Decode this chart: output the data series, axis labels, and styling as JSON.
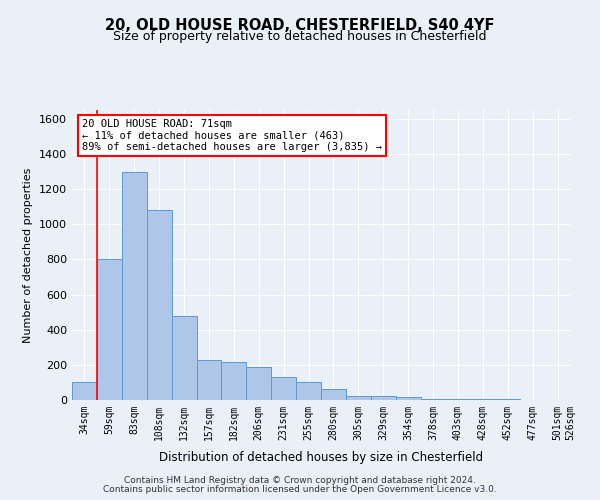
{
  "title1": "20, OLD HOUSE ROAD, CHESTERFIELD, S40 4YF",
  "title2": "Size of property relative to detached houses in Chesterfield",
  "xlabel": "Distribution of detached houses by size in Chesterfield",
  "ylabel": "Number of detached properties",
  "footer1": "Contains HM Land Registry data © Crown copyright and database right 2024.",
  "footer2": "Contains public sector information licensed under the Open Government Licence v3.0.",
  "annotation_line1": "20 OLD HOUSE ROAD: 71sqm",
  "annotation_line2": "← 11% of detached houses are smaller (463)",
  "annotation_line3": "89% of semi-detached houses are larger (3,835) →",
  "bar_values": [
    100,
    800,
    1300,
    1080,
    480,
    225,
    215,
    190,
    130,
    105,
    60,
    25,
    20,
    18,
    5,
    5,
    3,
    3,
    2,
    2
  ],
  "categories": [
    "34sqm",
    "59sqm",
    "83sqm",
    "108sqm",
    "132sqm",
    "157sqm",
    "182sqm",
    "206sqm",
    "231sqm",
    "255sqm",
    "280sqm",
    "305sqm",
    "329sqm",
    "354sqm",
    "378sqm",
    "403sqm",
    "428sqm",
    "452sqm",
    "477sqm",
    "501sqm"
  ],
  "xtick_extra": "526sqm",
  "bar_color": "#aec6e8",
  "bar_edge_color": "#5b9bd5",
  "background_color": "#eaf0f8",
  "plot_bg_color": "#eaf0f8",
  "red_line_x": 0.5,
  "ylim": [
    0,
    1650
  ],
  "yticks": [
    0,
    200,
    400,
    600,
    800,
    1000,
    1200,
    1400,
    1600
  ],
  "annotation_box_facecolor": "white",
  "annotation_box_edge": "red",
  "grid_color": "#ffffff"
}
